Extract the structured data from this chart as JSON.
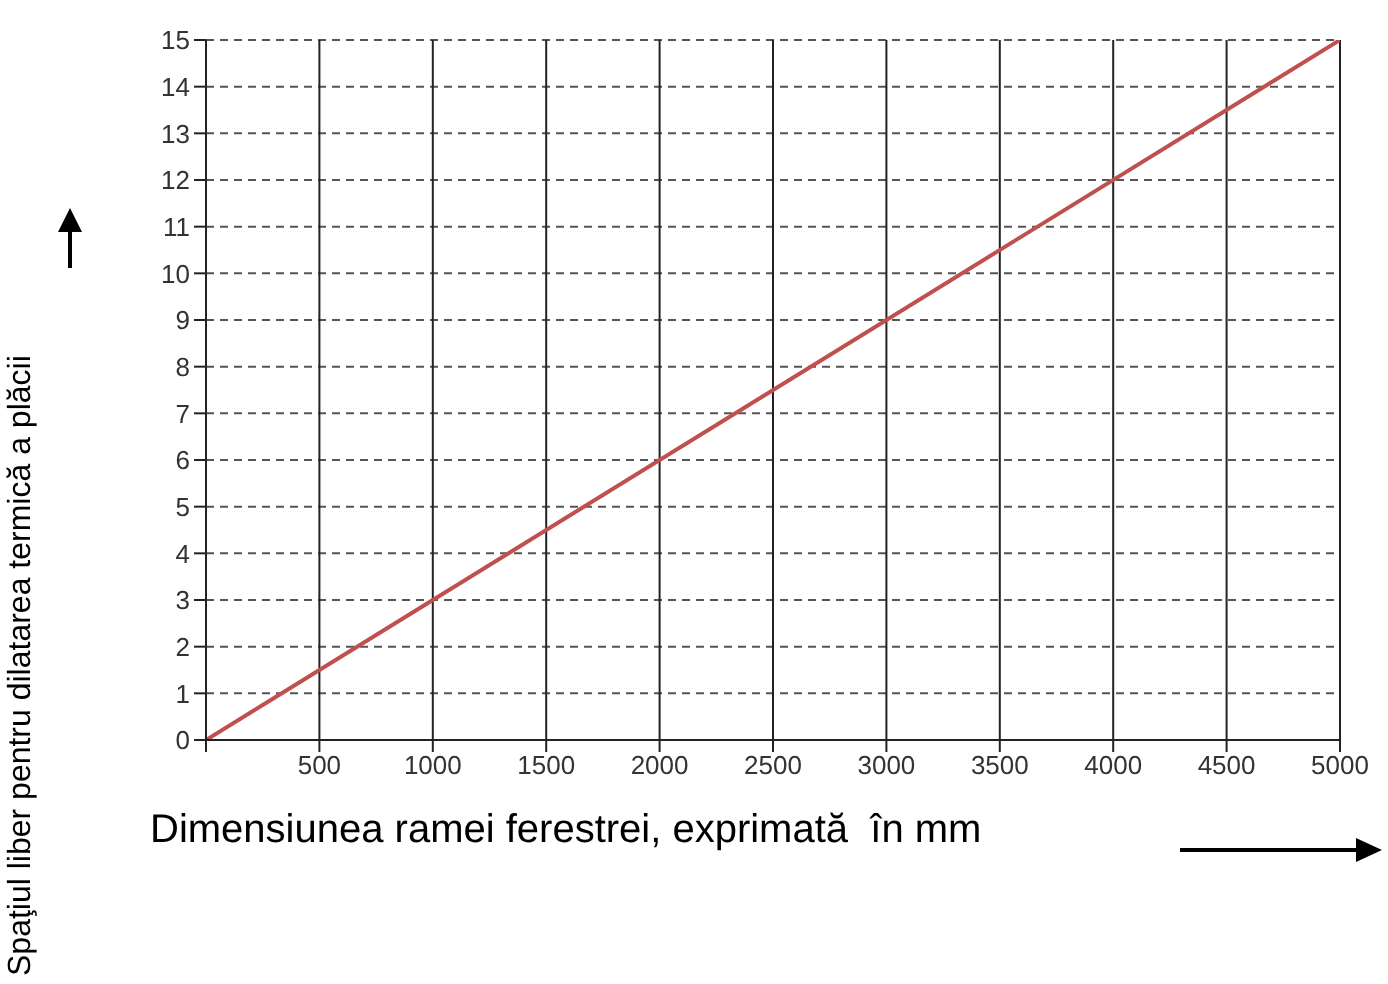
{
  "chart_data": {
    "type": "line",
    "xlabel": "Dimensiunea ramei ferestrei, exprimată  în mm",
    "ylabel": "Spaţiul liber pentru dilatarea termică a plăcii",
    "x": [
      0,
      5000
    ],
    "series": [
      {
        "color": "#c0504d",
        "values": [
          0,
          15
        ]
      }
    ],
    "xlim": [
      0,
      5000
    ],
    "xticks": [
      {
        "value": 0,
        "label": null
      },
      500,
      1000,
      1500,
      2000,
      2500,
      3000,
      3500,
      4000,
      4500,
      5000
    ],
    "ylim": [
      0,
      15
    ],
    "yticks": [
      0,
      1,
      2,
      3,
      4,
      5,
      6,
      7,
      8,
      9,
      10,
      11,
      12,
      13,
      14,
      15
    ],
    "grid": true,
    "marker": "none",
    "line_style": "solid"
  }
}
